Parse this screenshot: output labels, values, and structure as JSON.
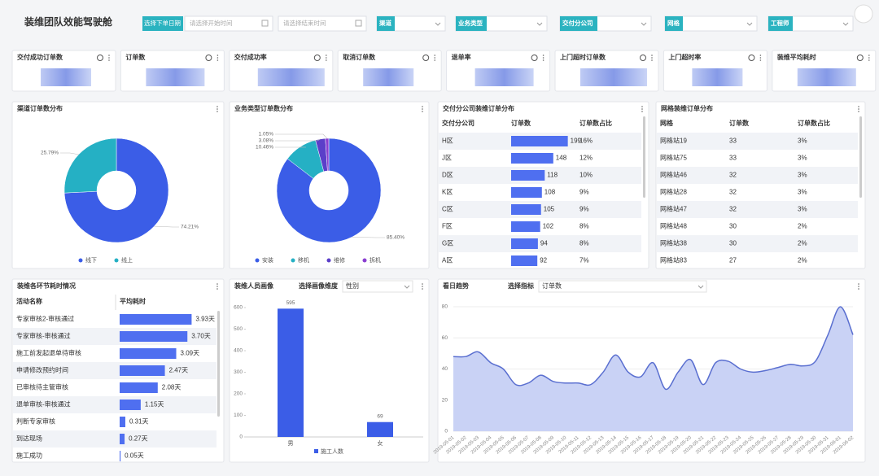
{
  "header": {
    "title": "装维团队效能驾驶舱",
    "date_label": "选择下单日期",
    "start_placeholder": "请选择开始时间",
    "end_placeholder": "请选择结束时间",
    "filters": [
      "渠道",
      "业务类型",
      "交付分公司",
      "网格",
      "工程师"
    ]
  },
  "kpis": [
    "交付成功订单数",
    "订单数",
    "交付成功率",
    "取消订单数",
    "退单率",
    "上门超时订单数",
    "上门超时率",
    "装维平均耗时"
  ],
  "channel_pie": {
    "type": "pie",
    "title": "渠道订单数分布",
    "categories": [
      "线下",
      "线上"
    ],
    "values": [
      74.21,
      25.79
    ],
    "value_labels": [
      "74.21%",
      "25.79%"
    ],
    "colors": [
      "#3b5de7",
      "#25b0c4"
    ]
  },
  "business_donut": {
    "type": "pie",
    "title": "业务类型订单数分布",
    "categories": [
      "安装",
      "移机",
      "维修",
      "拆机"
    ],
    "values": [
      85.4,
      10.46,
      3.08,
      1.05
    ],
    "value_labels": [
      "85.40%",
      "10.46%",
      "3.08%",
      "1.05%"
    ],
    "colors": [
      "#3b5de7",
      "#25b0c4",
      "#5b3fc9",
      "#8a3fd1"
    ]
  },
  "branch_table": {
    "title": "交付分公司装维订单分布",
    "columns": [
      "交付分公司",
      "订单数",
      "订单数占比"
    ],
    "rows": [
      [
        "H区",
        199,
        "16%"
      ],
      [
        "J区",
        148,
        "12%"
      ],
      [
        "D区",
        118,
        "10%"
      ],
      [
        "K区",
        108,
        "9%"
      ],
      [
        "C区",
        105,
        "9%"
      ],
      [
        "F区",
        102,
        "8%"
      ],
      [
        "G区",
        94,
        "8%"
      ],
      [
        "A区",
        92,
        "7%"
      ]
    ]
  },
  "grid_table": {
    "title": "网格装维订单分布",
    "columns": [
      "网格",
      "订单数",
      "订单数占比"
    ],
    "rows": [
      [
        "网格站19",
        33,
        "3%"
      ],
      [
        "网格站75",
        33,
        "3%"
      ],
      [
        "网格站46",
        32,
        "3%"
      ],
      [
        "网格站28",
        32,
        "3%"
      ],
      [
        "网格站47",
        32,
        "3%"
      ],
      [
        "网格站48",
        30,
        "2%"
      ],
      [
        "网格站38",
        30,
        "2%"
      ],
      [
        "网格站83",
        27,
        "2%"
      ]
    ]
  },
  "step_table": {
    "title": "装维各环节耗时情况",
    "columns": [
      "活动名称",
      "平均耗时"
    ],
    "rows": [
      {
        "name": "专家审核2-审核通过",
        "value": 3.93,
        "label": "3.93天"
      },
      {
        "name": "专家审核-审核通过",
        "value": 3.7,
        "label": "3.70天"
      },
      {
        "name": "施工前发起退单待审核",
        "value": 3.09,
        "label": "3.09天"
      },
      {
        "name": "申请修改预约时间",
        "value": 2.47,
        "label": "2.47天"
      },
      {
        "name": "已审核待主管审核",
        "value": 2.08,
        "label": "2.08天"
      },
      {
        "name": "退单审核-审核通过",
        "value": 1.15,
        "label": "1.15天"
      },
      {
        "name": "判断专家审核",
        "value": 0.31,
        "label": "0.31天"
      },
      {
        "name": "到达现场",
        "value": 0.27,
        "label": "0.27天"
      },
      {
        "name": "施工成功",
        "value": 0.05,
        "label": "0.05天"
      }
    ]
  },
  "staff_chart": {
    "type": "bar",
    "title": "装维人员画像",
    "selector_label": "选择画像维度",
    "selector_value": "性别",
    "categories": [
      "男",
      "女"
    ],
    "series": [
      {
        "name": "施工人数",
        "color": "#3b5de7",
        "values": [
          595,
          69
        ]
      }
    ],
    "ylim": [
      0,
      600
    ],
    "yticks": [
      0,
      100,
      200,
      300,
      400,
      500,
      600
    ]
  },
  "trend_chart": {
    "type": "line",
    "title": "看日趋势",
    "selector_label": "选择指标",
    "selector_value": "订单数",
    "color": "#5a6fd0",
    "x": [
      "2019-05-01",
      "2019-05-02",
      "2019-05-03",
      "2019-05-04",
      "2019-05-05",
      "2019-05-06",
      "2019-05-07",
      "2019-05-08",
      "2019-05-09",
      "2019-05-10",
      "2019-05-11",
      "2019-05-12",
      "2019-05-13",
      "2019-05-14",
      "2019-05-15",
      "2019-05-16",
      "2019-05-17",
      "2019-05-18",
      "2019-05-19",
      "2019-05-20",
      "2019-05-21",
      "2019-05-22",
      "2019-05-23",
      "2019-05-24",
      "2019-05-25",
      "2019-05-26",
      "2019-05-27",
      "2019-05-28",
      "2019-05-29",
      "2019-05-30",
      "2019-05-31",
      "2019-06-01",
      "2019-06-02"
    ],
    "values": [
      48,
      48,
      51,
      44,
      40,
      30,
      31,
      36,
      32,
      31,
      31,
      30,
      38,
      49,
      38,
      35,
      44,
      27,
      38,
      46,
      30,
      44,
      45,
      40,
      38,
      39,
      41,
      43,
      42,
      45,
      62,
      80,
      62
    ],
    "ylim": [
      0,
      80
    ],
    "yticks": [
      0,
      20,
      40,
      60,
      80
    ],
    "grid": true
  }
}
